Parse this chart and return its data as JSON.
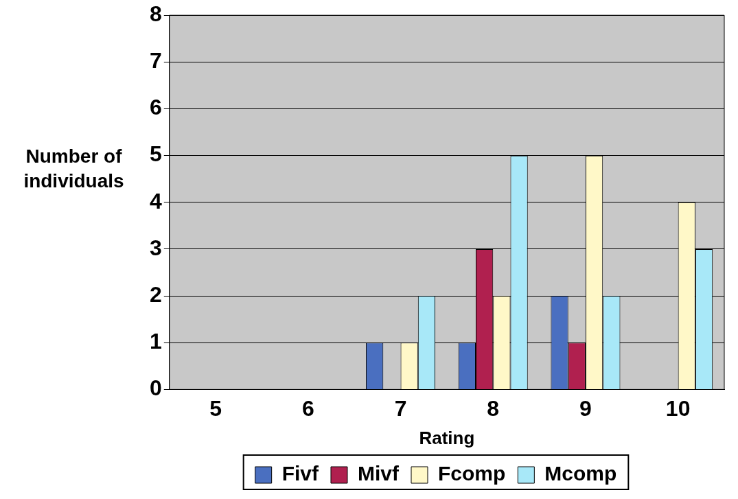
{
  "chart_data": {
    "type": "bar",
    "xlabel": "Rating",
    "ylabel": "Number of individuals",
    "categories": [
      "5",
      "6",
      "7",
      "8",
      "9",
      "10"
    ],
    "series": [
      {
        "name": "Fivf",
        "color": "#4a6fc0",
        "values": [
          0,
          0,
          1,
          1,
          2,
          0
        ]
      },
      {
        "name": "Mivf",
        "color": "#b0204f",
        "values": [
          0,
          0,
          0,
          3,
          1,
          0
        ]
      },
      {
        "name": "Fcomp",
        "color": "#fff8c8",
        "values": [
          0,
          0,
          1,
          2,
          5,
          4
        ]
      },
      {
        "name": "Mcomp",
        "color": "#a8e8f8",
        "values": [
          0,
          0,
          2,
          5,
          2,
          3
        ]
      }
    ],
    "ylim": [
      0,
      8
    ],
    "yticks": [
      0,
      1,
      2,
      3,
      4,
      5,
      6,
      7,
      8
    ],
    "grid": "y",
    "legend": "bottom"
  }
}
